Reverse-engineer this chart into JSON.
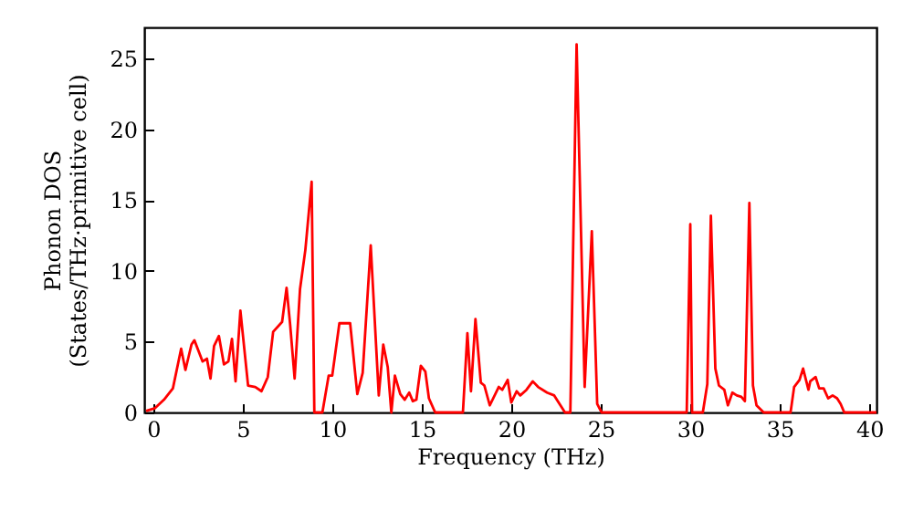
{
  "chart_data": {
    "type": "line",
    "xlabel": "Frequency (THz)",
    "ylabel": "Phonon DOS\n(States/THz·primitive cell)",
    "xlim": [
      -0.5,
      40.4
    ],
    "ylim": [
      0,
      27.2
    ],
    "xticks": [
      0,
      5,
      10,
      15,
      20,
      25,
      30,
      35,
      40
    ],
    "yticks": [
      0,
      5,
      10,
      15,
      20,
      25
    ],
    "grid": false,
    "x": [
      -0.4,
      0.1,
      0.6,
      1.1,
      1.56,
      1.8,
      2.14,
      2.3,
      2.76,
      3.0,
      3.2,
      3.4,
      3.67,
      3.95,
      4.2,
      4.4,
      4.6,
      4.87,
      5.3,
      5.7,
      6.05,
      6.4,
      6.7,
      7.2,
      7.45,
      7.65,
      7.9,
      8.2,
      8.5,
      8.85,
      9.0,
      9.45,
      9.8,
      10.0,
      10.4,
      11.0,
      11.4,
      11.7,
      12.15,
      12.6,
      12.85,
      13.1,
      13.3,
      13.5,
      13.8,
      14.05,
      14.3,
      14.5,
      14.7,
      14.95,
      15.2,
      15.4,
      15.75,
      17.3,
      17.55,
      17.75,
      18.0,
      18.3,
      18.5,
      18.8,
      19.3,
      19.5,
      19.8,
      20.0,
      20.3,
      20.5,
      20.85,
      21.2,
      21.5,
      22.0,
      22.4,
      22.7,
      23.0,
      23.3,
      23.65,
      24.1,
      24.5,
      24.8,
      25.05,
      29.8,
      30.0,
      30.1,
      30.7,
      30.95,
      31.15,
      31.4,
      31.6,
      31.9,
      32.1,
      32.35,
      32.6,
      32.85,
      33.05,
      33.3,
      33.5,
      33.7,
      34.1,
      35.6,
      35.8,
      36.1,
      36.3,
      36.6,
      36.7,
      37.0,
      37.2,
      37.45,
      37.7,
      37.95,
      38.2,
      38.4,
      38.6,
      40.4
    ],
    "series": [
      {
        "color": "#ff0000",
        "values": [
          0.1,
          0.3,
          0.9,
          1.7,
          4.5,
          3.0,
          4.8,
          5.1,
          3.6,
          3.8,
          2.4,
          4.7,
          5.4,
          3.4,
          3.6,
          5.2,
          2.2,
          7.2,
          1.9,
          1.8,
          1.5,
          2.5,
          5.7,
          6.4,
          8.8,
          6.2,
          2.4,
          8.7,
          11.5,
          16.3,
          0,
          0,
          2.6,
          2.6,
          6.3,
          6.3,
          1.3,
          2.8,
          11.8,
          1.2,
          4.8,
          3.2,
          0,
          2.6,
          1.3,
          0.9,
          1.4,
          0.8,
          0.9,
          3.3,
          2.9,
          1.0,
          0,
          0,
          5.6,
          1.5,
          6.6,
          2.1,
          1.9,
          0.5,
          1.8,
          1.6,
          2.3,
          0.7,
          1.5,
          1.2,
          1.6,
          2.2,
          1.8,
          1.4,
          1.2,
          0.6,
          0,
          0,
          26.0,
          1.8,
          12.8,
          0.6,
          0,
          0,
          13.3,
          0,
          0,
          2.0,
          13.9,
          3.1,
          1.9,
          1.6,
          0.5,
          1.4,
          1.2,
          1.1,
          0.8,
          14.8,
          1.9,
          0.5,
          0,
          0,
          1.8,
          2.3,
          3.1,
          1.6,
          2.2,
          2.5,
          1.7,
          1.7,
          1.0,
          1.2,
          1.0,
          0.6,
          0,
          0
        ]
      }
    ]
  }
}
